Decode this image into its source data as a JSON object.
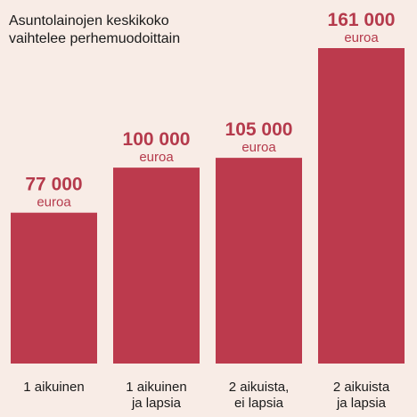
{
  "chart_data": {
    "type": "bar",
    "title": [
      "Asuntolainojen keskikoko",
      "vaihtelee perhemuodoittain"
    ],
    "categories": [
      [
        "1 aikuinen"
      ],
      [
        "1 aikuinen",
        "ja lapsia"
      ],
      [
        "2 aikuista,",
        "ei lapsia"
      ],
      [
        "2 aikuista",
        "ja lapsia"
      ]
    ],
    "values": [
      77000,
      100000,
      105000,
      161000
    ],
    "value_labels": [
      "77 000",
      "100 000",
      "105 000",
      "161 000"
    ],
    "unit": "euroa",
    "xlabel": "",
    "ylabel": "",
    "ylim": [
      0,
      161000
    ],
    "grid": false,
    "legend": "none",
    "bar_color": "#bc3a4d"
  }
}
